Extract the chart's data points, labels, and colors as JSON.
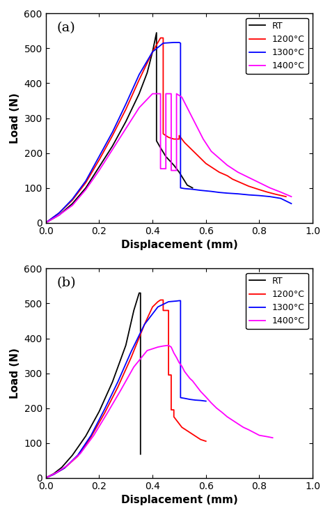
{
  "panel_a": {
    "label": "(a)",
    "curves": {
      "RT": {
        "color": "black",
        "legend": "RT",
        "x": [
          0.0,
          0.05,
          0.1,
          0.15,
          0.2,
          0.25,
          0.3,
          0.35,
          0.38,
          0.4,
          0.415,
          0.415,
          0.43,
          0.45,
          0.48,
          0.5,
          0.53,
          0.55
        ],
        "y": [
          0,
          22,
          55,
          100,
          160,
          220,
          290,
          370,
          430,
          490,
          545,
          235,
          215,
          190,
          165,
          145,
          108,
          100
        ]
      },
      "1200": {
        "color": "red",
        "legend": "1200°C",
        "x": [
          0.0,
          0.05,
          0.1,
          0.15,
          0.2,
          0.25,
          0.3,
          0.35,
          0.4,
          0.43,
          0.44,
          0.44,
          0.46,
          0.48,
          0.5,
          0.5,
          0.52,
          0.54,
          0.56,
          0.58,
          0.6,
          0.63,
          0.65,
          0.68,
          0.7,
          0.73,
          0.76,
          0.8,
          0.83,
          0.86,
          0.9
        ],
        "y": [
          0,
          28,
          65,
          115,
          180,
          250,
          325,
          410,
          490,
          530,
          530,
          255,
          245,
          240,
          240,
          250,
          230,
          215,
          200,
          185,
          170,
          155,
          145,
          135,
          125,
          115,
          105,
          95,
          88,
          82,
          75
        ]
      },
      "1300": {
        "color": "blue",
        "legend": "1300°C",
        "x": [
          0.0,
          0.05,
          0.1,
          0.15,
          0.2,
          0.25,
          0.3,
          0.35,
          0.4,
          0.44,
          0.48,
          0.5,
          0.505,
          0.505,
          0.52,
          0.55,
          0.58,
          0.62,
          0.65,
          0.68,
          0.72,
          0.76,
          0.8,
          0.84,
          0.88,
          0.92
        ],
        "y": [
          0,
          28,
          68,
          120,
          190,
          260,
          340,
          425,
          490,
          515,
          517,
          517,
          515,
          100,
          98,
          96,
          93,
          90,
          87,
          85,
          83,
          80,
          78,
          75,
          70,
          55
        ]
      },
      "1400": {
        "color": "magenta",
        "legend": "1400°C",
        "x": [
          0.0,
          0.05,
          0.1,
          0.15,
          0.2,
          0.25,
          0.3,
          0.35,
          0.4,
          0.43,
          0.43,
          0.45,
          0.45,
          0.47,
          0.47,
          0.49,
          0.49,
          0.51,
          0.53,
          0.55,
          0.57,
          0.59,
          0.62,
          0.65,
          0.68,
          0.72,
          0.76,
          0.8,
          0.84,
          0.88,
          0.92
        ],
        "y": [
          0,
          22,
          50,
          95,
          150,
          210,
          270,
          330,
          370,
          370,
          155,
          155,
          370,
          370,
          150,
          150,
          370,
          360,
          330,
          300,
          270,
          240,
          205,
          185,
          165,
          145,
          130,
          115,
          100,
          88,
          75
        ]
      }
    }
  },
  "panel_b": {
    "label": "(b)",
    "curves": {
      "RT": {
        "color": "black",
        "legend": "RT",
        "x": [
          0.0,
          0.03,
          0.06,
          0.1,
          0.15,
          0.2,
          0.25,
          0.3,
          0.33,
          0.35,
          0.355,
          0.355
        ],
        "y": [
          0,
          12,
          30,
          65,
          120,
          190,
          275,
          380,
          480,
          530,
          530,
          68
        ]
      },
      "1200": {
        "color": "red",
        "legend": "1200°C",
        "x": [
          0.0,
          0.03,
          0.07,
          0.12,
          0.17,
          0.22,
          0.27,
          0.32,
          0.37,
          0.4,
          0.42,
          0.43,
          0.44,
          0.44,
          0.46,
          0.46,
          0.47,
          0.47,
          0.48,
          0.48,
          0.49,
          0.5,
          0.51,
          0.52,
          0.53,
          0.54,
          0.56,
          0.58,
          0.6
        ],
        "y": [
          0,
          10,
          28,
          62,
          118,
          185,
          260,
          345,
          440,
          490,
          505,
          510,
          510,
          480,
          480,
          295,
          295,
          195,
          195,
          175,
          165,
          155,
          145,
          140,
          135,
          130,
          120,
          110,
          105
        ]
      },
      "1300": {
        "color": "blue",
        "legend": "1300°C",
        "x": [
          0.0,
          0.03,
          0.07,
          0.12,
          0.17,
          0.22,
          0.27,
          0.32,
          0.37,
          0.42,
          0.46,
          0.49,
          0.5,
          0.505,
          0.505,
          0.52,
          0.54,
          0.56,
          0.58,
          0.6
        ],
        "y": [
          0,
          10,
          28,
          65,
          122,
          196,
          275,
          362,
          440,
          490,
          505,
          507,
          508,
          508,
          230,
          228,
          225,
          223,
          222,
          220
        ]
      },
      "1400": {
        "color": "magenta",
        "legend": "1400°C",
        "x": [
          0.0,
          0.04,
          0.08,
          0.13,
          0.18,
          0.23,
          0.28,
          0.33,
          0.38,
          0.42,
          0.44,
          0.46,
          0.47,
          0.48,
          0.49,
          0.5,
          0.51,
          0.52,
          0.53,
          0.54,
          0.55,
          0.56,
          0.57,
          0.58,
          0.59,
          0.6,
          0.62,
          0.64,
          0.66,
          0.68,
          0.7,
          0.72,
          0.74,
          0.76,
          0.78,
          0.8,
          0.83,
          0.85
        ],
        "y": [
          0,
          15,
          35,
          70,
          122,
          185,
          250,
          318,
          365,
          375,
          378,
          380,
          375,
          358,
          345,
          330,
          320,
          305,
          295,
          285,
          278,
          268,
          258,
          248,
          240,
          232,
          215,
          200,
          188,
          175,
          165,
          155,
          145,
          138,
          130,
          122,
          118,
          115
        ]
      }
    }
  },
  "xlim": [
    0.0,
    1.0
  ],
  "ylim": [
    0,
    600
  ],
  "xlabel": "Displacement (mm)",
  "ylabel": "Load (N)",
  "xticks": [
    0.0,
    0.2,
    0.4,
    0.6,
    0.8,
    1.0
  ],
  "yticks": [
    0,
    100,
    200,
    300,
    400,
    500,
    600
  ],
  "linewidth": 1.3,
  "legend_order": [
    "RT",
    "1200",
    "1300",
    "1400"
  ]
}
